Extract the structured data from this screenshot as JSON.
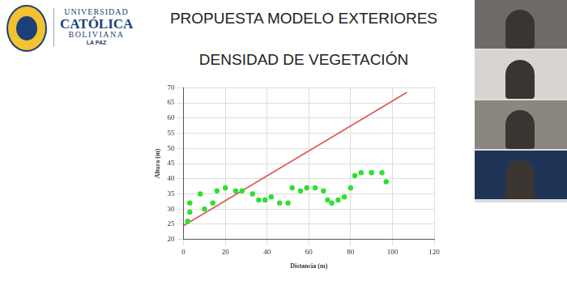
{
  "header": {
    "institution": [
      "UNIVERSIDAD",
      "CATÓLICA",
      "BOLIVIANA",
      "LA PAZ"
    ]
  },
  "chart_data": {
    "type": "scatter",
    "title": "PROPUESTA MODELO EXTERIORES",
    "subtitle": "DENSIDAD DE VEGETACIÓN",
    "x_label": "Distancia (m)",
    "y_label": "Altura (m)",
    "series": [
      {
        "type": "scatter",
        "color": "#2ee02e",
        "marker": "circle",
        "x": [
          2,
          3,
          3,
          8,
          10,
          14,
          16,
          20,
          25,
          28,
          33,
          36,
          39,
          42,
          46,
          50,
          52,
          56,
          59,
          63,
          67,
          69,
          71,
          74,
          77,
          80,
          82,
          85,
          90,
          95,
          97
        ],
        "values": [
          26,
          29,
          32,
          35,
          30,
          32,
          36,
          37,
          36,
          36,
          35,
          33,
          33,
          34,
          32,
          32,
          37,
          36,
          37,
          37,
          36,
          33,
          32,
          33,
          34,
          37,
          41,
          42,
          42,
          42,
          39
        ]
      },
      {
        "type": "line",
        "color": "#e05555",
        "line_style": "solid",
        "x": [
          0,
          107
        ],
        "values": [
          24.5,
          68.5
        ]
      }
    ],
    "xlim": [
      0,
      120
    ],
    "xticks": [
      0,
      20,
      40,
      60,
      80,
      100,
      120
    ],
    "ylim": [
      20,
      70
    ],
    "yticks": [
      20,
      25,
      30,
      35,
      40,
      45,
      50,
      55,
      60,
      65,
      70
    ],
    "grid": true
  }
}
